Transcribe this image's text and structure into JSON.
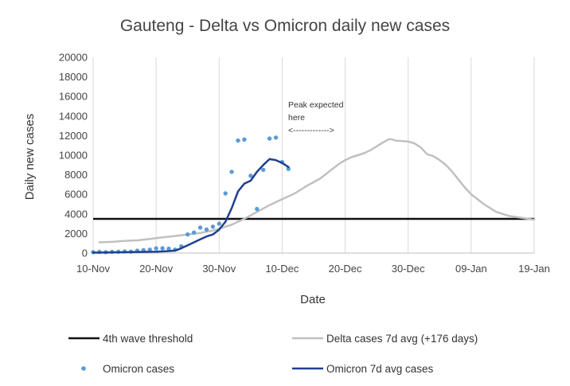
{
  "chart_data": {
    "type": "line",
    "title": "Gauteng -  Delta vs Omicron daily new cases",
    "xlabel": "Date",
    "ylabel": "Daily new cases",
    "ylim": [
      0,
      20000
    ],
    "yticks": [
      0,
      2000,
      4000,
      6000,
      8000,
      10000,
      12000,
      14000,
      16000,
      18000,
      20000
    ],
    "ytick_labels": [
      "0",
      "2000",
      "4000",
      "6000",
      "8000",
      "10000",
      "12000",
      "14000",
      "16000",
      "18000",
      "20000"
    ],
    "xlim_days": [
      0,
      70
    ],
    "xticks": [
      {
        "day": 0,
        "label": "10-Nov"
      },
      {
        "day": 10,
        "label": "20-Nov"
      },
      {
        "day": 20,
        "label": "30-Nov"
      },
      {
        "day": 30,
        "label": "10-Dec"
      },
      {
        "day": 40,
        "label": "20-Dec"
      },
      {
        "day": 50,
        "label": "30-Dec"
      },
      {
        "day": 60,
        "label": "09-Jan"
      },
      {
        "day": 70,
        "label": "19-Jan"
      }
    ],
    "grid": "vertical",
    "annotation": {
      "line1": "Peak expected",
      "line2": "here",
      "arrow": "<------------->",
      "x_range_days": [
        31,
        41
      ],
      "y": 12400
    },
    "series": [
      {
        "name": "4th wave threshold",
        "kind": "hline",
        "color": "#111111",
        "value": 3500
      },
      {
        "name": "Delta cases 7d avg (+176 days)",
        "kind": "line",
        "color": "#c0c0c0",
        "x": [
          1,
          3,
          5,
          7,
          9,
          11,
          13,
          15,
          17,
          19,
          20,
          22,
          24,
          26,
          28,
          30,
          32,
          34,
          36,
          37,
          38,
          39,
          40,
          41,
          42,
          43,
          44,
          45,
          46,
          47,
          47.5,
          48,
          49,
          50,
          51,
          52,
          53,
          54,
          55,
          56,
          57,
          58,
          59,
          60,
          61,
          62,
          63,
          64,
          65,
          66,
          67,
          68,
          69,
          70
        ],
        "values": [
          1100,
          1150,
          1250,
          1300,
          1450,
          1600,
          1750,
          1900,
          2050,
          2300,
          2500,
          2900,
          3500,
          4200,
          4900,
          5500,
          6100,
          6900,
          7600,
          8100,
          8600,
          9100,
          9500,
          9800,
          10000,
          10200,
          10500,
          10900,
          11300,
          11650,
          11600,
          11500,
          11450,
          11400,
          11200,
          10800,
          10100,
          9900,
          9500,
          9000,
          8300,
          7500,
          6700,
          6000,
          5500,
          5000,
          4600,
          4200,
          4000,
          3800,
          3700,
          3600,
          3500,
          3400
        ]
      },
      {
        "name": "Omicron cases",
        "kind": "scatter",
        "color": "#5b9bd5",
        "x": [
          0,
          1,
          2,
          3,
          4,
          5,
          6,
          7,
          8,
          9,
          10,
          11,
          12,
          13,
          14,
          15,
          16,
          17,
          18,
          19,
          20,
          21,
          22,
          23,
          24,
          25,
          26,
          27,
          28,
          29,
          30,
          31
        ],
        "values": [
          100,
          120,
          100,
          130,
          140,
          160,
          150,
          250,
          300,
          350,
          480,
          500,
          450,
          350,
          700,
          1900,
          2100,
          2600,
          2400,
          2700,
          3000,
          6100,
          8300,
          11500,
          11600,
          7900,
          4500,
          8500,
          11700,
          11800,
          9300,
          8600
        ]
      },
      {
        "name": "Omicron 7d avg cases",
        "kind": "line",
        "color": "#1f3f8f",
        "x": [
          0,
          2,
          4,
          6,
          8,
          10,
          12,
          13,
          14,
          15,
          16,
          17,
          18,
          19,
          20,
          21,
          22,
          23,
          24,
          25,
          26,
          27,
          28,
          29,
          30,
          31
        ],
        "values": [
          50,
          60,
          80,
          100,
          120,
          150,
          200,
          250,
          500,
          800,
          1100,
          1400,
          1700,
          1900,
          2400,
          3200,
          4600,
          6300,
          7100,
          7400,
          8300,
          9000,
          9600,
          9500,
          9200,
          8800
        ]
      }
    ]
  }
}
